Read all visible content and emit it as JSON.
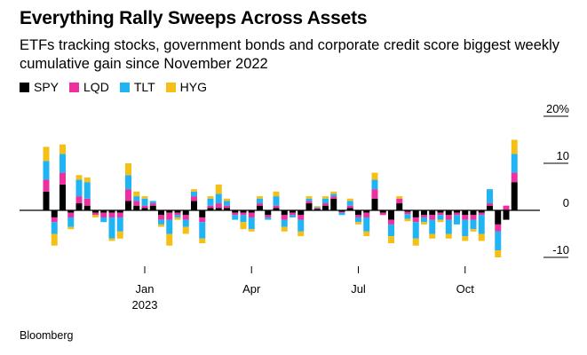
{
  "title": "Everything Rally Sweeps Across Assets",
  "subtitle": "ETFs tracking stocks, government bonds and corporate credit score biggest weekly cumulative gain since November 2022",
  "source": "Bloomberg",
  "colors": {
    "SPY": "#000000",
    "LQD": "#ee2fa0",
    "TLT": "#21b4f5",
    "HYG": "#f5c015"
  },
  "chart_data": {
    "type": "bar",
    "stacked": true,
    "unit": "%",
    "title": "Everything Rally Sweeps Across Assets",
    "xlabel": "",
    "ylabel": "",
    "ylim": [
      -12,
      22
    ],
    "yticks": [
      {
        "value": 20,
        "label": "20%"
      },
      {
        "value": 10,
        "label": "10"
      },
      {
        "value": 0,
        "label": "0"
      },
      {
        "value": -10,
        "label": "-10"
      }
    ],
    "xticks": [
      {
        "week": 12,
        "label": "Jan",
        "sub": "2023"
      },
      {
        "week": 25,
        "label": "Apr",
        "sub": ""
      },
      {
        "week": 38,
        "label": "Jul",
        "sub": ""
      },
      {
        "week": 51,
        "label": "Oct",
        "sub": ""
      }
    ],
    "series_names": [
      "SPY",
      "LQD",
      "TLT",
      "HYG"
    ],
    "weeks": [
      [
        4,
        2.5,
        4,
        3
      ],
      [
        -1.5,
        -1,
        -2.5,
        -2.5
      ],
      [
        5.5,
        2.5,
        4,
        2
      ],
      [
        -0.5,
        -1,
        -2,
        -0.5
      ],
      [
        1.5,
        1.5,
        3.5,
        1
      ],
      [
        1,
        1.5,
        3.5,
        1
      ],
      [
        -0.5,
        -0.5,
        0,
        -0.5
      ],
      [
        -0.5,
        -1,
        -1,
        0
      ],
      [
        -0.5,
        -1,
        -4.5,
        -0.5
      ],
      [
        -0.5,
        -1,
        -3,
        -1.5
      ],
      [
        2,
        2.5,
        3,
        2.5
      ],
      [
        1,
        1,
        1,
        1
      ],
      [
        0.5,
        0.5,
        1.5,
        0.5
      ],
      [
        1,
        0.5,
        0.5,
        0
      ],
      [
        -1,
        -1,
        -1,
        -0.5
      ],
      [
        -0.5,
        -1.5,
        -3,
        -2.5
      ],
      [
        -0.5,
        -0.5,
        -0.5,
        -0.5
      ],
      [
        -1,
        -1,
        -1.5,
        -1.5
      ],
      [
        2,
        1,
        1,
        0.5
      ],
      [
        -1.5,
        -1,
        -3.5,
        -1
      ],
      [
        0.5,
        0.5,
        1.5,
        0.5
      ],
      [
        0.5,
        1,
        2,
        2
      ],
      [
        0.5,
        0.5,
        1,
        0.5
      ],
      [
        -0.5,
        -0.5,
        -1,
        0
      ],
      [
        -0.5,
        -0.5,
        -1.5,
        -1.5
      ],
      [
        -0.5,
        -1,
        -2.5,
        -0.5
      ],
      [
        1,
        0.5,
        1,
        0.5
      ],
      [
        -1,
        -0.5,
        -0.5,
        0
      ],
      [
        0.5,
        0.5,
        2,
        1
      ],
      [
        -1,
        -1,
        -1.5,
        -1
      ],
      [
        -0.5,
        -0.5,
        -0.5,
        0
      ],
      [
        -1,
        -1,
        -2.5,
        -1
      ],
      [
        1.5,
        0.5,
        0.5,
        0.5
      ],
      [
        0.3,
        0.2,
        0.2,
        0.2
      ],
      [
        1,
        0.5,
        1,
        0.5
      ],
      [
        2.5,
        0.5,
        0.5,
        0.5
      ],
      [
        -0.3,
        -0.2,
        -0.5,
        0
      ],
      [
        0.5,
        0.5,
        1,
        0.5
      ],
      [
        -1,
        -0.5,
        -1,
        -0.5
      ],
      [
        -0.5,
        -1,
        -3,
        -1
      ],
      [
        2.5,
        2,
        2,
        1.5
      ],
      [
        -0.5,
        -0.5,
        0,
        0
      ],
      [
        -2,
        -1,
        -2.5,
        -1.5
      ],
      [
        1.5,
        1,
        0,
        0.5
      ],
      [
        -0.3,
        -0.5,
        -1,
        -0.5
      ],
      [
        -1.5,
        -1,
        -3.5,
        -1.5
      ],
      [
        -1,
        -0.5,
        -1,
        -0.5
      ],
      [
        -1,
        -1,
        -3,
        -1
      ],
      [
        -0.5,
        -0.5,
        -1,
        -0.5
      ],
      [
        -1,
        -1,
        -3,
        -1
      ],
      [
        -0.5,
        -0.5,
        -2,
        0
      ],
      [
        -1,
        -1,
        -3.5,
        -1
      ],
      [
        -1,
        -1,
        -2,
        -0.5
      ],
      [
        -0.5,
        -0.5,
        -4,
        -1.5
      ],
      [
        1,
        0.5,
        3,
        0
      ],
      [
        -3,
        -1.5,
        -4,
        -1.5
      ],
      [
        -2,
        1,
        0,
        0
      ],
      [
        6,
        2,
        4,
        3
      ]
    ]
  }
}
